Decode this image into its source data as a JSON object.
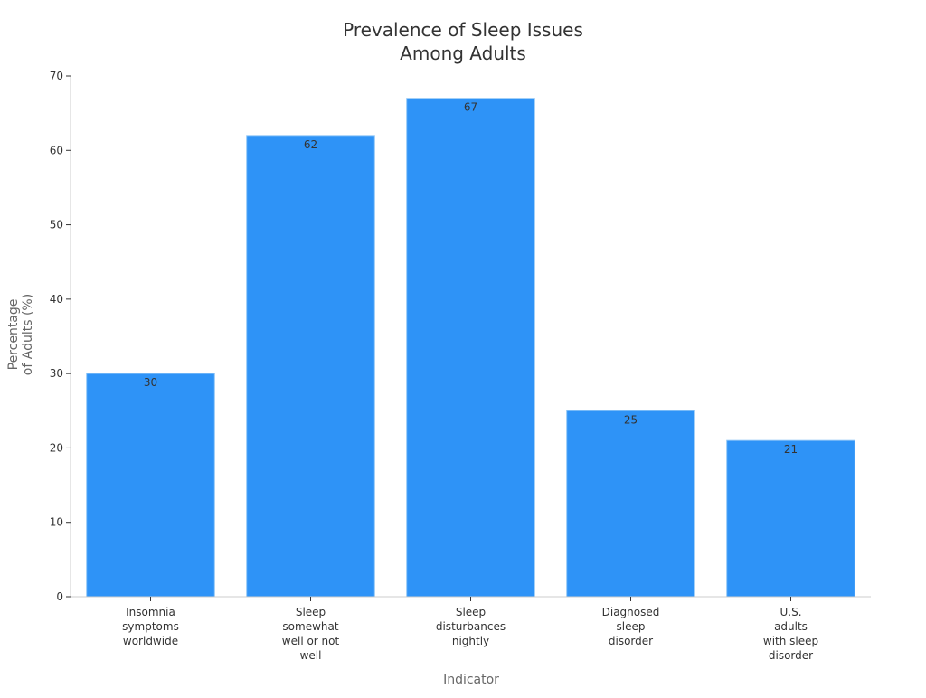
{
  "chart_data": {
    "type": "bar",
    "title": [
      "Prevalence of Sleep Issues",
      "Among Adults"
    ],
    "xlabel": "Indicator",
    "ylabel": [
      "Percentage",
      "of Adults (%)"
    ],
    "ylim": [
      0,
      70
    ],
    "yticks": [
      0,
      10,
      20,
      30,
      40,
      50,
      60,
      70
    ],
    "grid": false,
    "categories": [
      [
        "Insomnia",
        "symptoms",
        "worldwide"
      ],
      [
        "Sleep",
        "somewhat",
        "well or not",
        "well"
      ],
      [
        "Sleep",
        "disturbances",
        "nightly"
      ],
      [
        "Diagnosed",
        "sleep",
        "disorder"
      ],
      [
        "U.S.",
        "adults",
        "with sleep",
        "disorder"
      ]
    ],
    "values": [
      30,
      62,
      67,
      25,
      21
    ],
    "data_labels": [
      "30",
      "62",
      "67",
      "25",
      "21"
    ],
    "colors": {
      "bar": "#2e93f7",
      "bar_edge": "#8cc4f7",
      "axis": "#cccccc",
      "text": "#333333",
      "label": "#666666"
    }
  }
}
